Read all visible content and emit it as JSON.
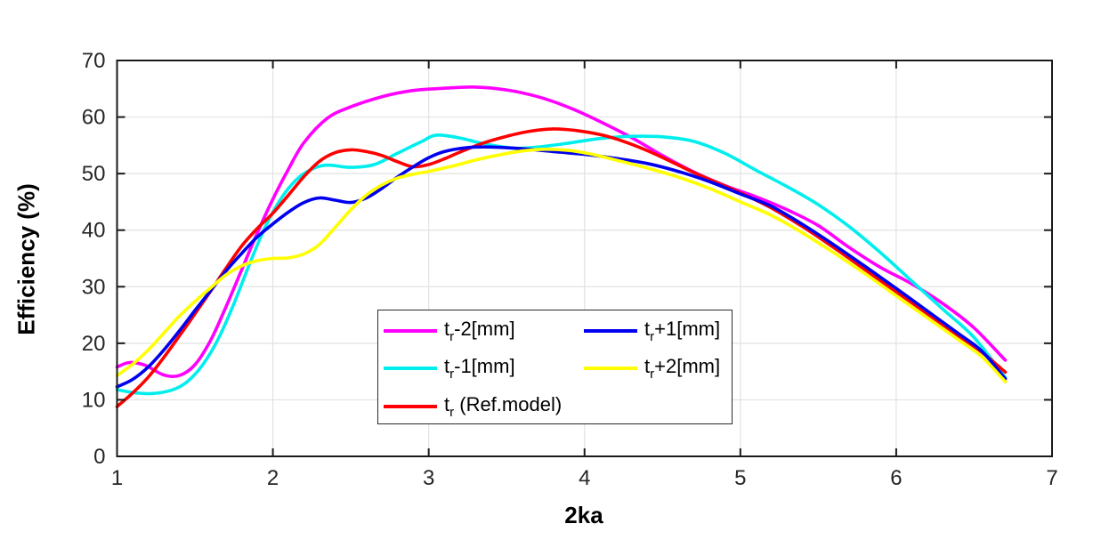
{
  "chart_data": {
    "type": "line",
    "title": "",
    "xlabel": "2ka",
    "ylabel": "Efficiency (%)",
    "xlim": [
      1,
      7
    ],
    "ylim": [
      0,
      70
    ],
    "x_ticks": [
      1,
      2,
      3,
      4,
      5,
      6,
      7
    ],
    "y_ticks": [
      0,
      10,
      20,
      30,
      40,
      50,
      60,
      70
    ],
    "grid": true,
    "grid_color": "#e2e2e2",
    "axis_color": "#1a1a1a",
    "tick_label_color": "#262626",
    "line_width": 3.6,
    "legend": {
      "position": "inside-bottom-center",
      "columns": 2,
      "column_major": true
    },
    "series": [
      {
        "id": "tr-minus-2mm",
        "label_base": "t",
        "label_sub": "r",
        "label_rest": "-2[mm]",
        "color": "#ff00ff",
        "points": [
          [
            1.0,
            15.8
          ],
          [
            1.08,
            16.6
          ],
          [
            1.18,
            16.1
          ],
          [
            1.3,
            14.4
          ],
          [
            1.4,
            14.3
          ],
          [
            1.5,
            16.2
          ],
          [
            1.6,
            20.5
          ],
          [
            1.7,
            26.5
          ],
          [
            1.8,
            33.0
          ],
          [
            1.9,
            39.5
          ],
          [
            2.0,
            45.5
          ],
          [
            2.1,
            50.8
          ],
          [
            2.2,
            55.5
          ],
          [
            2.35,
            59.8
          ],
          [
            2.5,
            61.8
          ],
          [
            2.7,
            63.6
          ],
          [
            2.9,
            64.7
          ],
          [
            3.1,
            65.1
          ],
          [
            3.3,
            65.3
          ],
          [
            3.5,
            64.8
          ],
          [
            3.7,
            63.6
          ],
          [
            3.9,
            61.7
          ],
          [
            4.1,
            59.2
          ],
          [
            4.3,
            56.4
          ],
          [
            4.5,
            53.2
          ],
          [
            4.7,
            50.3
          ],
          [
            4.9,
            47.9
          ],
          [
            5.1,
            45.9
          ],
          [
            5.3,
            43.6
          ],
          [
            5.5,
            40.8
          ],
          [
            5.7,
            36.9
          ],
          [
            5.9,
            33.4
          ],
          [
            6.1,
            30.5
          ],
          [
            6.3,
            27.0
          ],
          [
            6.5,
            22.7
          ],
          [
            6.7,
            17.0
          ]
        ]
      },
      {
        "id": "tr-minus-1mm",
        "label_base": "t",
        "label_sub": "r",
        "label_rest": "-1[mm]",
        "color": "#00eeee",
        "points": [
          [
            1.0,
            11.8
          ],
          [
            1.1,
            11.3
          ],
          [
            1.22,
            11.1
          ],
          [
            1.35,
            11.7
          ],
          [
            1.45,
            13.2
          ],
          [
            1.55,
            16.2
          ],
          [
            1.65,
            20.8
          ],
          [
            1.75,
            27.0
          ],
          [
            1.85,
            34.0
          ],
          [
            1.95,
            40.5
          ],
          [
            2.05,
            45.5
          ],
          [
            2.15,
            48.9
          ],
          [
            2.25,
            50.8
          ],
          [
            2.35,
            51.5
          ],
          [
            2.5,
            51.1
          ],
          [
            2.65,
            51.6
          ],
          [
            2.8,
            53.6
          ],
          [
            2.95,
            55.6
          ],
          [
            3.05,
            56.8
          ],
          [
            3.2,
            56.3
          ],
          [
            3.35,
            55.3
          ],
          [
            3.55,
            54.5
          ],
          [
            3.7,
            54.7
          ],
          [
            3.9,
            55.4
          ],
          [
            4.1,
            56.2
          ],
          [
            4.3,
            56.6
          ],
          [
            4.5,
            56.5
          ],
          [
            4.7,
            55.7
          ],
          [
            4.9,
            53.6
          ],
          [
            5.1,
            50.6
          ],
          [
            5.3,
            47.7
          ],
          [
            5.5,
            44.5
          ],
          [
            5.7,
            40.6
          ],
          [
            5.9,
            36.0
          ],
          [
            6.1,
            31.0
          ],
          [
            6.3,
            26.0
          ],
          [
            6.5,
            21.0
          ],
          [
            6.7,
            13.9
          ]
        ]
      },
      {
        "id": "tr-ref-model",
        "label_base": "t",
        "label_sub": "r",
        "label_rest": " (Ref.model)",
        "color": "#ff0000",
        "points": [
          [
            1.0,
            8.8
          ],
          [
            1.1,
            11.2
          ],
          [
            1.2,
            14.0
          ],
          [
            1.3,
            17.5
          ],
          [
            1.4,
            21.3
          ],
          [
            1.5,
            25.2
          ],
          [
            1.6,
            29.2
          ],
          [
            1.7,
            33.3
          ],
          [
            1.8,
            37.2
          ],
          [
            1.9,
            40.3
          ],
          [
            2.0,
            43.0
          ],
          [
            2.1,
            46.2
          ],
          [
            2.2,
            49.5
          ],
          [
            2.3,
            52.2
          ],
          [
            2.4,
            53.7
          ],
          [
            2.5,
            54.2
          ],
          [
            2.6,
            53.9
          ],
          [
            2.7,
            53.2
          ],
          [
            2.8,
            52.1
          ],
          [
            2.9,
            51.2
          ],
          [
            3.0,
            51.6
          ],
          [
            3.1,
            52.6
          ],
          [
            3.2,
            53.8
          ],
          [
            3.35,
            55.4
          ],
          [
            3.5,
            56.6
          ],
          [
            3.65,
            57.5
          ],
          [
            3.8,
            57.9
          ],
          [
            3.95,
            57.6
          ],
          [
            4.1,
            56.9
          ],
          [
            4.25,
            55.7
          ],
          [
            4.4,
            54.1
          ],
          [
            4.55,
            52.2
          ],
          [
            4.7,
            50.2
          ],
          [
            4.85,
            48.4
          ],
          [
            5.0,
            46.6
          ],
          [
            5.2,
            43.9
          ],
          [
            5.4,
            40.6
          ],
          [
            5.6,
            36.9
          ],
          [
            5.8,
            33.0
          ],
          [
            6.0,
            29.1
          ],
          [
            6.2,
            25.2
          ],
          [
            6.4,
            21.3
          ],
          [
            6.55,
            18.4
          ],
          [
            6.7,
            14.9
          ]
        ]
      },
      {
        "id": "tr-plus-1mm",
        "label_base": "t",
        "label_sub": "r",
        "label_rest": "+1[mm]",
        "color": "#0000f0",
        "points": [
          [
            1.0,
            12.3
          ],
          [
            1.1,
            13.6
          ],
          [
            1.2,
            15.8
          ],
          [
            1.3,
            18.8
          ],
          [
            1.4,
            22.2
          ],
          [
            1.5,
            25.8
          ],
          [
            1.6,
            29.3
          ],
          [
            1.7,
            32.8
          ],
          [
            1.8,
            35.9
          ],
          [
            1.9,
            38.8
          ],
          [
            2.0,
            41.1
          ],
          [
            2.1,
            43.2
          ],
          [
            2.2,
            44.9
          ],
          [
            2.3,
            45.7
          ],
          [
            2.4,
            45.3
          ],
          [
            2.5,
            44.9
          ],
          [
            2.6,
            45.7
          ],
          [
            2.7,
            47.4
          ],
          [
            2.8,
            49.4
          ],
          [
            2.9,
            51.2
          ],
          [
            3.0,
            52.8
          ],
          [
            3.1,
            53.9
          ],
          [
            3.25,
            54.6
          ],
          [
            3.4,
            54.7
          ],
          [
            3.6,
            54.4
          ],
          [
            3.8,
            53.9
          ],
          [
            4.0,
            53.4
          ],
          [
            4.2,
            52.7
          ],
          [
            4.4,
            51.8
          ],
          [
            4.6,
            50.4
          ],
          [
            4.8,
            48.6
          ],
          [
            5.0,
            46.4
          ],
          [
            5.2,
            44.2
          ],
          [
            5.4,
            41.0
          ],
          [
            5.6,
            37.4
          ],
          [
            5.8,
            33.6
          ],
          [
            6.0,
            29.7
          ],
          [
            6.2,
            25.7
          ],
          [
            6.4,
            21.7
          ],
          [
            6.55,
            18.6
          ],
          [
            6.7,
            13.7
          ]
        ]
      },
      {
        "id": "tr-plus-2mm",
        "label_base": "t",
        "label_sub": "r",
        "label_rest": "+2[mm]",
        "color": "#ffff00",
        "points": [
          [
            1.0,
            14.3
          ],
          [
            1.1,
            16.3
          ],
          [
            1.2,
            18.8
          ],
          [
            1.3,
            21.8
          ],
          [
            1.4,
            24.8
          ],
          [
            1.5,
            27.4
          ],
          [
            1.6,
            29.8
          ],
          [
            1.7,
            32.1
          ],
          [
            1.8,
            33.7
          ],
          [
            1.9,
            34.6
          ],
          [
            2.0,
            35.0
          ],
          [
            2.1,
            35.1
          ],
          [
            2.2,
            35.8
          ],
          [
            2.3,
            37.5
          ],
          [
            2.4,
            40.5
          ],
          [
            2.5,
            43.6
          ],
          [
            2.6,
            46.2
          ],
          [
            2.7,
            48.0
          ],
          [
            2.8,
            49.2
          ],
          [
            2.9,
            49.9
          ],
          [
            3.0,
            50.4
          ],
          [
            3.15,
            51.3
          ],
          [
            3.3,
            52.4
          ],
          [
            3.45,
            53.3
          ],
          [
            3.6,
            54.0
          ],
          [
            3.75,
            54.3
          ],
          [
            3.9,
            54.1
          ],
          [
            4.05,
            53.4
          ],
          [
            4.2,
            52.4
          ],
          [
            4.4,
            51.0
          ],
          [
            4.6,
            49.4
          ],
          [
            4.8,
            47.4
          ],
          [
            5.0,
            45.0
          ],
          [
            5.2,
            42.6
          ],
          [
            5.4,
            39.5
          ],
          [
            5.6,
            36.0
          ],
          [
            5.8,
            32.3
          ],
          [
            6.0,
            28.4
          ],
          [
            6.2,
            24.5
          ],
          [
            6.4,
            20.6
          ],
          [
            6.55,
            17.6
          ],
          [
            6.7,
            13.2
          ]
        ]
      }
    ]
  }
}
